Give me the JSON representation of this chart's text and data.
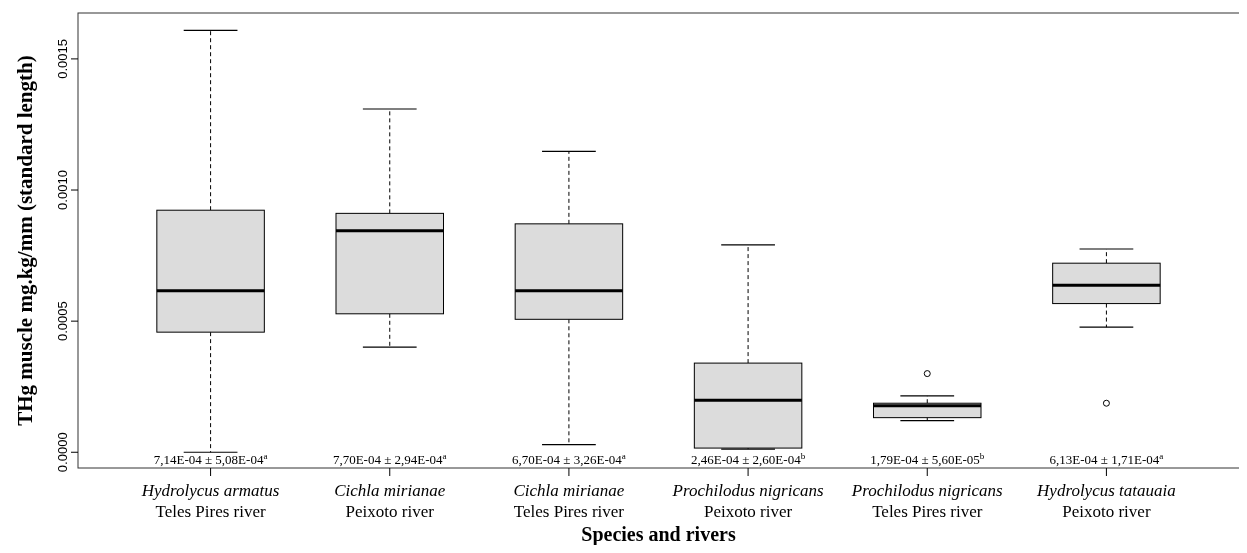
{
  "chart_data": {
    "type": "box",
    "xlabel": "Species and rivers",
    "ylabel": "THg muscle mg.kg/mm (standard length)",
    "categories": [
      "Hydrolycus armatus\nTeles Pires river",
      "Cichla mirianae\nPeixoto river",
      "Cichla mirianae\nTeles Pires river",
      "Prochilodus nigricans\nPeixoto river",
      "Prochilodus nigricans\nTeles Pires river",
      "Hydrolycus tatauaia\nPeixoto river"
    ],
    "color": "#dcdcdc",
    "boxes": [
      {
        "low": 0.0,
        "q1": 0.000458,
        "median": 0.000616,
        "q3": 0.000923,
        "high": 0.001609
      },
      {
        "low": 0.000401,
        "q1": 0.000528,
        "median": 0.000845,
        "q3": 0.000911,
        "high": 0.001309
      },
      {
        "low": 2.9e-05,
        "q1": 0.000507,
        "median": 0.000616,
        "q3": 0.000871,
        "high": 0.001147
      },
      {
        "low": 1.2e-05,
        "q1": 1.6e-05,
        "median": 0.000198,
        "q3": 0.00034,
        "high": 0.000791
      },
      {
        "low": 0.000121,
        "q1": 0.000132,
        "median": 0.000177,
        "q3": 0.000187,
        "high": 0.000215,
        "outliers": [
          0.0003
        ]
      },
      {
        "low": 0.000477,
        "q1": 0.000567,
        "median": 0.000637,
        "q3": 0.000721,
        "high": 0.000775,
        "outliers": [
          0.000187
        ]
      }
    ],
    "ylim": [
      -6e-05,
      0.001675
    ],
    "yticks": [
      {
        "value": 0,
        "label": "0.0000"
      },
      {
        "value": 0.0005,
        "label": "0.0005"
      },
      {
        "value": 0.001,
        "label": "0.0010"
      },
      {
        "value": 0.0015,
        "label": "0.0015"
      }
    ],
    "annotations": [
      "7,14E-04 ± 5,08E-04$^{a}$",
      "7,70E-04 ± 2,94E-04$^{a}$",
      "6,70E-04 ± 3,26E-04$^{a}$",
      "2,46E-04 ± 2,60E-04$^{b}$",
      "1,79E-04 ± 5,60E-05$^{b}$",
      "6,13E-04 ± 1,71E-04$^{a}$"
    ]
  }
}
